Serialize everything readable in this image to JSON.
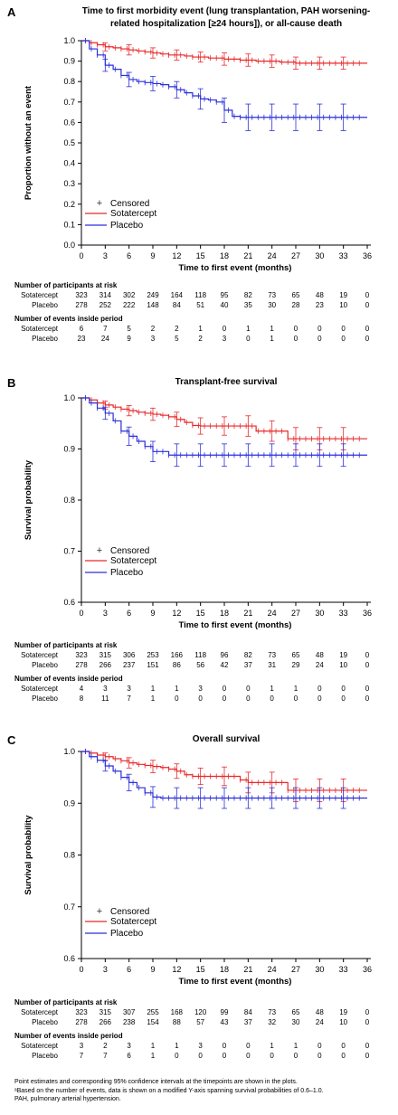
{
  "chart_data": [
    {
      "type": "line",
      "panel_label": "A",
      "title": "Time to first morbidity event (lung transplantation, PAH worsening-related hospitalization [≥24 hours]), or all-cause death",
      "xlabel": "Time to first event (months)",
      "ylabel": "Proportion without an event",
      "x_ticks": [
        0,
        3,
        6,
        9,
        12,
        15,
        18,
        21,
        24,
        27,
        30,
        33,
        36
      ],
      "y_ticks": [
        0.0,
        0.1,
        0.2,
        0.3,
        0.4,
        0.5,
        0.6,
        0.7,
        0.8,
        0.9,
        1.0
      ],
      "xlim": [
        0,
        36
      ],
      "ylim": [
        0.0,
        1.0
      ],
      "legend": {
        "position": "bottom-left",
        "censored_label": "Censored"
      },
      "series": [
        {
          "name": "Sotatercept",
          "color": "#e8292b",
          "x": [
            0,
            1,
            2,
            3,
            4,
            5,
            6,
            7,
            8,
            9,
            10,
            11,
            12,
            13,
            14,
            15,
            16,
            17,
            18,
            19,
            20,
            21,
            22,
            23,
            24,
            25,
            26,
            27,
            28,
            29,
            30,
            31,
            32,
            33,
            34,
            35,
            36
          ],
          "y": [
            1.0,
            0.99,
            0.98,
            0.97,
            0.965,
            0.96,
            0.955,
            0.95,
            0.945,
            0.94,
            0.935,
            0.93,
            0.93,
            0.925,
            0.92,
            0.92,
            0.915,
            0.915,
            0.91,
            0.91,
            0.905,
            0.905,
            0.9,
            0.9,
            0.9,
            0.895,
            0.895,
            0.89,
            0.89,
            0.89,
            0.89,
            0.89,
            0.89,
            0.89,
            0.89,
            0.89,
            0.89
          ],
          "ci_x": [
            3,
            6,
            9,
            12,
            15,
            18,
            21,
            24,
            27,
            30,
            33
          ],
          "ci_y": [
            0.97,
            0.955,
            0.94,
            0.93,
            0.92,
            0.91,
            0.905,
            0.9,
            0.89,
            0.89,
            0.89
          ],
          "ci_half": [
            0.02,
            0.025,
            0.025,
            0.025,
            0.025,
            0.03,
            0.03,
            0.03,
            0.03,
            0.03,
            0.03
          ],
          "at_risk": [
            323,
            314,
            302,
            249,
            164,
            118,
            95,
            82,
            73,
            65,
            48,
            19,
            0
          ],
          "events": [
            6,
            7,
            5,
            2,
            2,
            1,
            0,
            1,
            1,
            0,
            0,
            0,
            0
          ]
        },
        {
          "name": "Placebo",
          "color": "#2b2fd9",
          "x": [
            0,
            1,
            2,
            3,
            4,
            5,
            6,
            7,
            8,
            9,
            10,
            11,
            12,
            13,
            14,
            15,
            16,
            17,
            18,
            19,
            20,
            21,
            22,
            23,
            24,
            25,
            26,
            27,
            28,
            29,
            30,
            31,
            32,
            33,
            34,
            35,
            36
          ],
          "y": [
            1.0,
            0.96,
            0.93,
            0.88,
            0.86,
            0.83,
            0.81,
            0.8,
            0.795,
            0.79,
            0.785,
            0.775,
            0.76,
            0.745,
            0.73,
            0.715,
            0.71,
            0.7,
            0.66,
            0.63,
            0.625,
            0.625,
            0.625,
            0.625,
            0.625,
            0.625,
            0.625,
            0.625,
            0.625,
            0.625,
            0.625,
            0.625,
            0.625,
            0.625,
            0.625,
            0.625,
            0.625
          ],
          "ci_x": [
            3,
            6,
            9,
            12,
            15,
            18,
            21,
            24,
            27,
            30,
            33
          ],
          "ci_y": [
            0.88,
            0.81,
            0.79,
            0.76,
            0.715,
            0.66,
            0.625,
            0.625,
            0.625,
            0.625,
            0.625
          ],
          "ci_half": [
            0.03,
            0.035,
            0.035,
            0.04,
            0.05,
            0.06,
            0.065,
            0.065,
            0.065,
            0.065,
            0.065
          ],
          "at_risk": [
            278,
            252,
            222,
            148,
            84,
            51,
            40,
            35,
            30,
            28,
            23,
            10,
            0
          ],
          "events": [
            23,
            24,
            9,
            3,
            5,
            2,
            3,
            0,
            1,
            0,
            0,
            0,
            0
          ]
        }
      ]
    },
    {
      "type": "line",
      "panel_label": "B",
      "title": "Transplant-free survival",
      "xlabel": "Time to first event (months)",
      "ylabel": "Survival probability",
      "x_ticks": [
        0,
        3,
        6,
        9,
        12,
        15,
        18,
        21,
        24,
        27,
        30,
        33,
        36
      ],
      "y_ticks": [
        0.6,
        0.7,
        0.8,
        0.9,
        1.0
      ],
      "xlim": [
        0,
        36
      ],
      "ylim": [
        0.6,
        1.0
      ],
      "legend": {
        "position": "bottom-left",
        "censored_label": "Censored"
      },
      "series": [
        {
          "name": "Sotatercept",
          "color": "#e8292b",
          "x": [
            0,
            1,
            2,
            3,
            4,
            5,
            6,
            7,
            8,
            9,
            10,
            11,
            12,
            13,
            14,
            15,
            16,
            17,
            18,
            19,
            20,
            21,
            22,
            23,
            24,
            25,
            26,
            27,
            28,
            29,
            30,
            31,
            32,
            33,
            34,
            35,
            36
          ],
          "y": [
            1.0,
            0.996,
            0.99,
            0.986,
            0.982,
            0.978,
            0.975,
            0.972,
            0.97,
            0.968,
            0.966,
            0.963,
            0.958,
            0.952,
            0.946,
            0.945,
            0.945,
            0.945,
            0.945,
            0.945,
            0.945,
            0.945,
            0.935,
            0.935,
            0.935,
            0.935,
            0.92,
            0.92,
            0.92,
            0.92,
            0.92,
            0.92,
            0.92,
            0.92,
            0.92,
            0.92,
            0.92
          ],
          "ci_x": [
            3,
            6,
            9,
            12,
            15,
            18,
            21,
            24,
            27,
            30,
            33
          ],
          "ci_y": [
            0.986,
            0.975,
            0.968,
            0.958,
            0.945,
            0.945,
            0.945,
            0.935,
            0.92,
            0.92,
            0.92
          ],
          "ci_half": [
            0.008,
            0.01,
            0.012,
            0.014,
            0.016,
            0.018,
            0.02,
            0.02,
            0.022,
            0.022,
            0.022
          ],
          "at_risk": [
            323,
            315,
            306,
            253,
            166,
            118,
            96,
            82,
            73,
            65,
            48,
            19,
            0
          ],
          "events": [
            4,
            3,
            3,
            1,
            1,
            3,
            0,
            0,
            1,
            1,
            0,
            0,
            0
          ]
        },
        {
          "name": "Placebo",
          "color": "#2b2fd9",
          "x": [
            0,
            1,
            2,
            3,
            4,
            5,
            6,
            7,
            8,
            9,
            10,
            11,
            12,
            13,
            14,
            15,
            16,
            17,
            18,
            19,
            20,
            21,
            22,
            23,
            24,
            25,
            26,
            27,
            28,
            29,
            30,
            31,
            32,
            33,
            34,
            35,
            36
          ],
          "y": [
            1.0,
            0.99,
            0.98,
            0.97,
            0.955,
            0.935,
            0.925,
            0.915,
            0.905,
            0.895,
            0.895,
            0.888,
            0.888,
            0.888,
            0.888,
            0.888,
            0.888,
            0.888,
            0.888,
            0.888,
            0.888,
            0.888,
            0.888,
            0.888,
            0.888,
            0.888,
            0.888,
            0.888,
            0.888,
            0.888,
            0.888,
            0.888,
            0.888,
            0.888,
            0.888,
            0.888,
            0.888
          ],
          "ci_x": [
            3,
            6,
            9,
            12,
            15,
            18,
            21,
            24,
            27,
            30,
            33
          ],
          "ci_y": [
            0.97,
            0.925,
            0.895,
            0.888,
            0.888,
            0.888,
            0.888,
            0.888,
            0.888,
            0.888,
            0.888
          ],
          "ci_half": [
            0.012,
            0.018,
            0.02,
            0.022,
            0.022,
            0.022,
            0.022,
            0.022,
            0.022,
            0.022,
            0.022
          ],
          "at_risk": [
            278,
            266,
            237,
            151,
            86,
            56,
            42,
            37,
            31,
            29,
            24,
            10,
            0
          ],
          "events": [
            8,
            11,
            7,
            1,
            0,
            0,
            0,
            0,
            0,
            0,
            0,
            0,
            0
          ]
        }
      ]
    },
    {
      "type": "line",
      "panel_label": "C",
      "title": "Overall survival",
      "xlabel": "Time to first event (months)",
      "ylabel": "Survival probability",
      "x_ticks": [
        0,
        3,
        6,
        9,
        12,
        15,
        18,
        21,
        24,
        27,
        30,
        33,
        36
      ],
      "y_ticks": [
        0.6,
        0.7,
        0.8,
        0.9,
        1.0
      ],
      "xlim": [
        0,
        36
      ],
      "ylim": [
        0.6,
        1.0
      ],
      "legend": {
        "position": "bottom-left",
        "censored_label": "Censored"
      },
      "series": [
        {
          "name": "Sotatercept",
          "color": "#e8292b",
          "x": [
            0,
            1,
            2,
            3,
            4,
            5,
            6,
            7,
            8,
            9,
            10,
            11,
            12,
            13,
            14,
            15,
            16,
            17,
            18,
            19,
            20,
            21,
            22,
            23,
            24,
            25,
            26,
            27,
            28,
            29,
            30,
            31,
            32,
            33,
            34,
            35,
            36
          ],
          "y": [
            1.0,
            0.997,
            0.993,
            0.99,
            0.986,
            0.982,
            0.978,
            0.975,
            0.973,
            0.971,
            0.969,
            0.966,
            0.962,
            0.955,
            0.952,
            0.952,
            0.952,
            0.952,
            0.952,
            0.952,
            0.945,
            0.94,
            0.94,
            0.94,
            0.94,
            0.94,
            0.925,
            0.925,
            0.925,
            0.925,
            0.925,
            0.925,
            0.925,
            0.925,
            0.925,
            0.925,
            0.925
          ],
          "ci_x": [
            3,
            6,
            9,
            12,
            15,
            18,
            21,
            24,
            27,
            30,
            33
          ],
          "ci_y": [
            0.99,
            0.978,
            0.971,
            0.962,
            0.952,
            0.952,
            0.94,
            0.94,
            0.925,
            0.925,
            0.925
          ],
          "ci_half": [
            0.007,
            0.01,
            0.012,
            0.014,
            0.016,
            0.018,
            0.02,
            0.02,
            0.022,
            0.022,
            0.022
          ],
          "at_risk": [
            323,
            315,
            307,
            255,
            168,
            120,
            99,
            84,
            73,
            65,
            48,
            19,
            0
          ],
          "events": [
            3,
            2,
            3,
            1,
            1,
            3,
            0,
            0,
            1,
            1,
            0,
            0,
            0
          ]
        },
        {
          "name": "Placebo",
          "color": "#2b2fd9",
          "x": [
            0,
            1,
            2,
            3,
            4,
            5,
            6,
            7,
            8,
            9,
            10,
            11,
            12,
            13,
            14,
            15,
            16,
            17,
            18,
            19,
            20,
            21,
            22,
            23,
            24,
            25,
            26,
            27,
            28,
            29,
            30,
            31,
            32,
            33,
            34,
            35,
            36
          ],
          "y": [
            1.0,
            0.99,
            0.983,
            0.972,
            0.962,
            0.95,
            0.94,
            0.93,
            0.92,
            0.912,
            0.91,
            0.91,
            0.91,
            0.91,
            0.91,
            0.91,
            0.91,
            0.91,
            0.91,
            0.91,
            0.91,
            0.91,
            0.91,
            0.91,
            0.91,
            0.91,
            0.91,
            0.91,
            0.91,
            0.91,
            0.91,
            0.91,
            0.91,
            0.91,
            0.91,
            0.91,
            0.91
          ],
          "ci_x": [
            3,
            6,
            9,
            12,
            15,
            18,
            21,
            24,
            27,
            30,
            33
          ],
          "ci_y": [
            0.972,
            0.94,
            0.912,
            0.91,
            0.91,
            0.91,
            0.91,
            0.91,
            0.91,
            0.91,
            0.91
          ],
          "ci_half": [
            0.01,
            0.016,
            0.02,
            0.02,
            0.02,
            0.02,
            0.02,
            0.02,
            0.02,
            0.02,
            0.02
          ],
          "at_risk": [
            278,
            266,
            238,
            154,
            88,
            57,
            43,
            37,
            32,
            30,
            24,
            10,
            0
          ],
          "events": [
            7,
            7,
            6,
            1,
            0,
            0,
            0,
            0,
            0,
            0,
            0,
            0,
            0
          ]
        }
      ]
    }
  ],
  "risk_table": {
    "at_risk_header": "Number of participants at risk",
    "events_header": "Number of events inside period",
    "sotatercept_label": "Sotatercept",
    "placebo_label": "Placebo"
  },
  "footnotes": [
    "Point estimates and corresponding 95% confidence intervals at the timepoints are shown in the plots.",
    "ᵃBased on the number of events, data is shown on a modified Y-axis spanning survival probabilities of 0.6–1.0.",
    "PAH, pulmonary arterial hypertension."
  ]
}
